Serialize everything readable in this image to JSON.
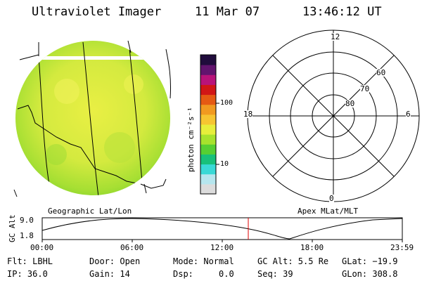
{
  "header": {
    "instrument": "Ultraviolet Imager",
    "date": "11 Mar 07",
    "time": "13:46:12 UT"
  },
  "colorbar": {
    "unit_label": "photon cm⁻²s⁻¹",
    "tick_100": "100",
    "tick_10": "10",
    "colors": [
      "#dcdcdc",
      "#b6e6ee",
      "#3ad9d6",
      "#18c07a",
      "#56cf33",
      "#a7e22d",
      "#e7ee3b",
      "#f6c531",
      "#f19a20",
      "#e55a13",
      "#d11616",
      "#b8137a",
      "#62146e",
      "#200c3c"
    ]
  },
  "polar_plot": {
    "label_top": "12",
    "label_left": "18",
    "label_right": "6",
    "label_bottom": "0",
    "ring_60": "60",
    "ring_70": "70",
    "ring_80": "80"
  },
  "image_captions": {
    "left": "Geographic Lat/Lon",
    "right": "Apex MLat/MLT"
  },
  "orbit_plot": {
    "ylabel": "GC Alt",
    "ytick_top": "9.0",
    "ytick_bottom": "1.8",
    "xticks": [
      "00:00",
      "06:00",
      "12:00",
      "18:00",
      "23:59"
    ],
    "current_marker_color": "#e00000"
  },
  "info": {
    "row1": {
      "flt": "Flt: LBHL",
      "door": "Door: Open",
      "mode": "Mode: Normal",
      "gcalt": "GC Alt: 5.5 Re",
      "glat": "GLat: −19.9"
    },
    "row2": {
      "ip": "IP: 36.0",
      "gain": "Gain: 14",
      "dsp": "Dsp:     0.0",
      "seq": "Seq: 39",
      "glon": "GLon: 308.8"
    }
  }
}
